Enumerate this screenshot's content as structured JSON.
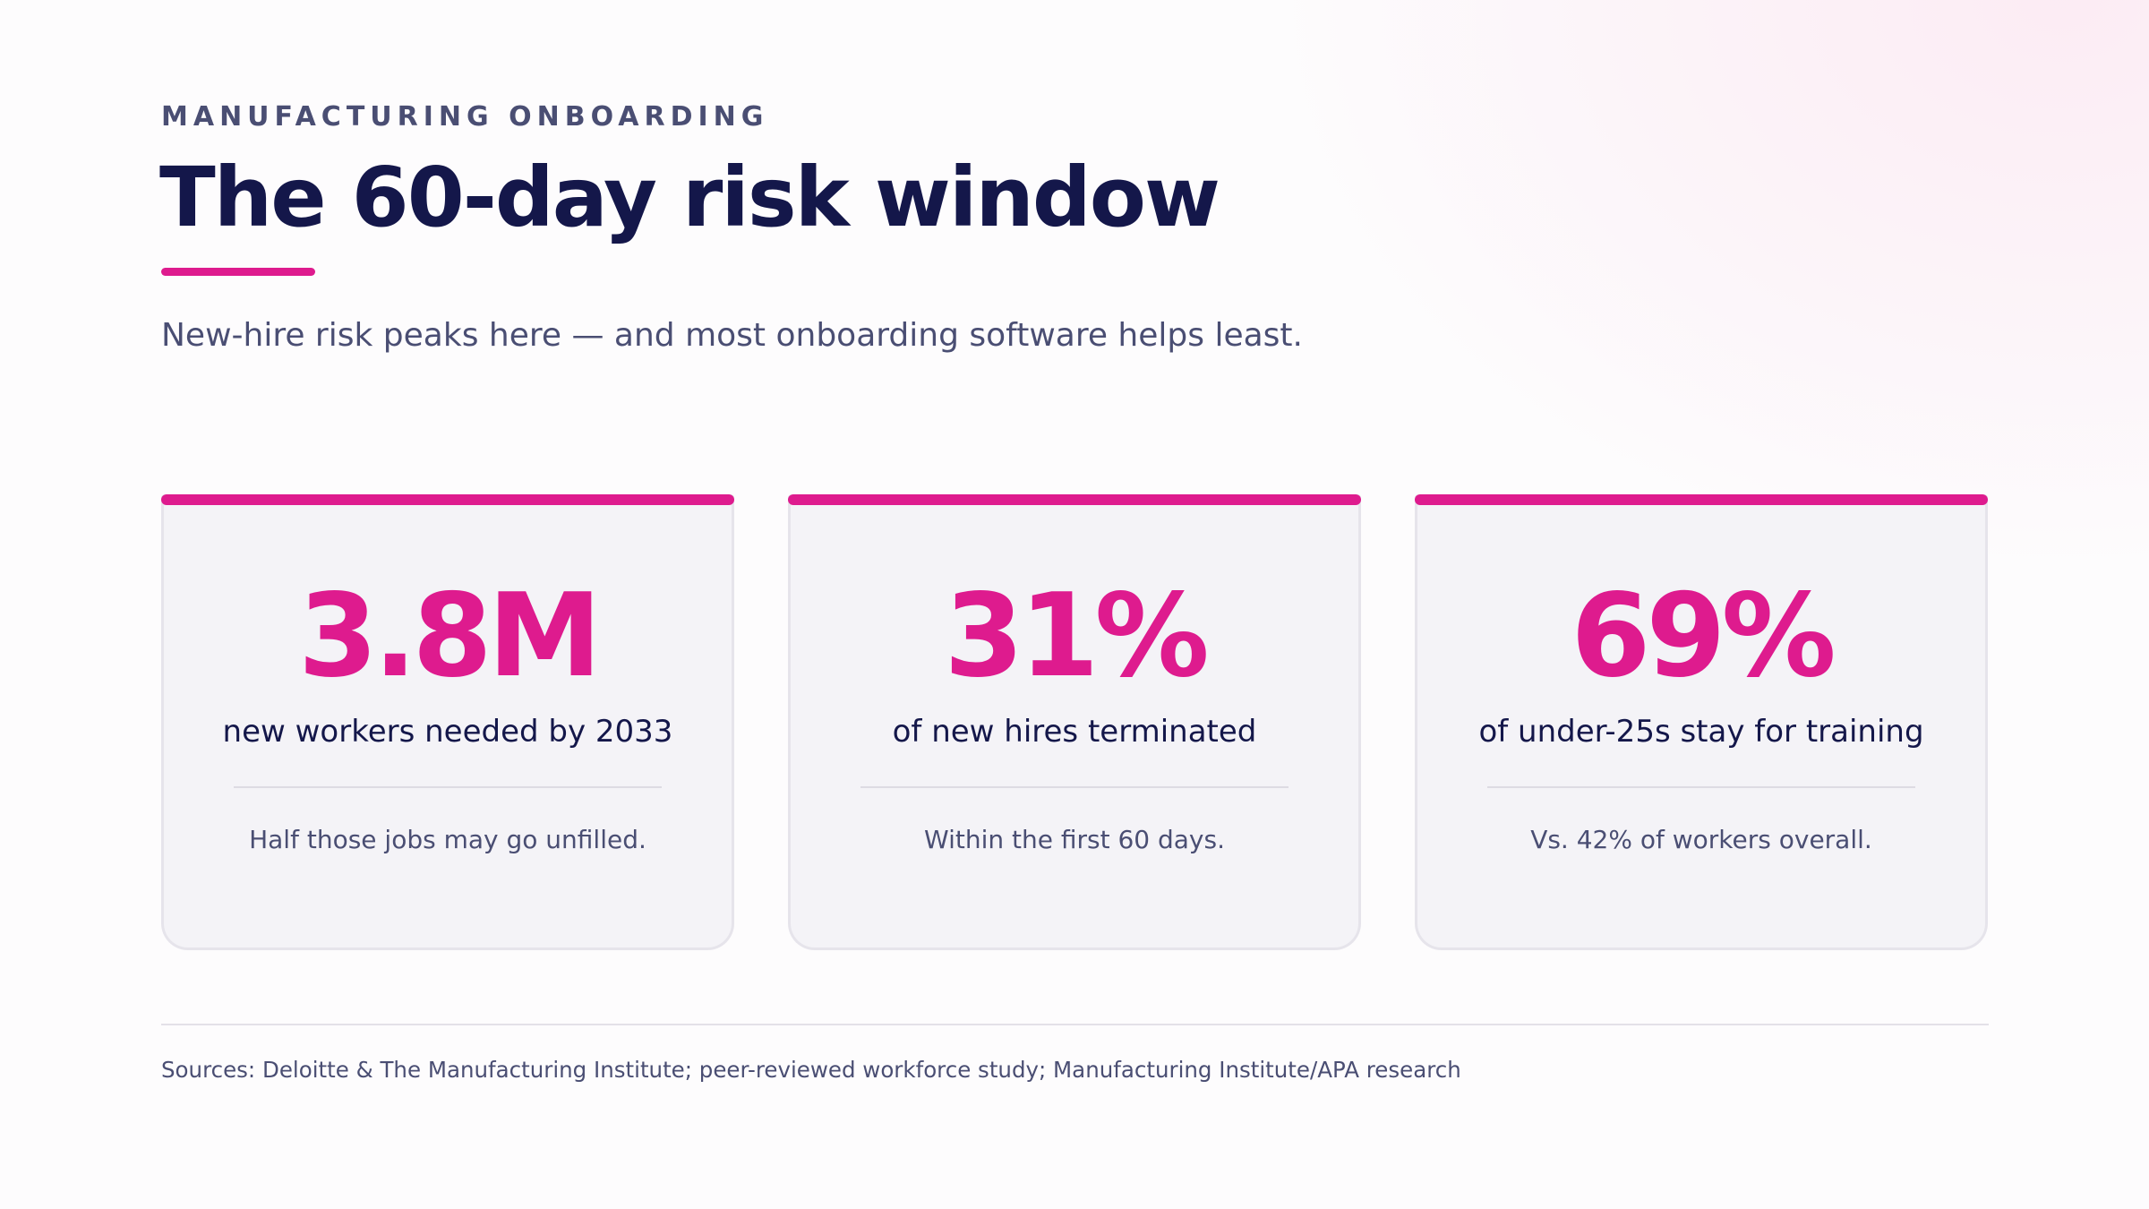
{
  "header": {
    "eyebrow": "MANUFACTURING ONBOARDING",
    "title": "The 60-day risk window",
    "subtitle": "New-hire risk peaks here — and most onboarding software helps least."
  },
  "stats": [
    {
      "value": "3.8M",
      "label": "new workers needed by 2033",
      "note": "Half those jobs may go unfilled."
    },
    {
      "value": "31%",
      "label": "of new hires terminated",
      "note": "Within the first 60 days."
    },
    {
      "value": "69%",
      "label": "of under-25s stay for training",
      "note": "Vs. 42% of workers overall."
    }
  ],
  "footer": {
    "sources": "Sources: Deloitte & The Manufacturing Institute; peer-reviewed workforce study; Manufacturing Institute/APA research"
  },
  "colors": {
    "accent": "#de1b8e",
    "heading": "#14174a",
    "body_text": "#4a4e73",
    "card_background": "#f4f3f7"
  }
}
